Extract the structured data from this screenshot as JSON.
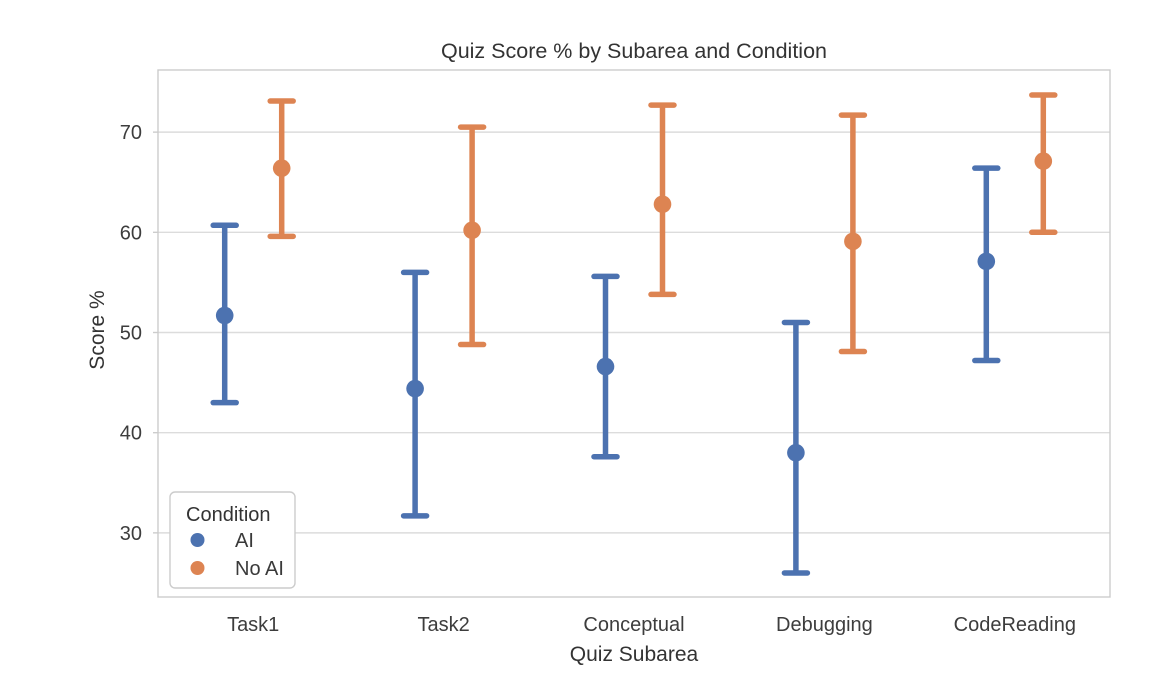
{
  "chart_data": {
    "type": "scatter",
    "variant": "point-plot-with-error-bars",
    "title": "Quiz Score % by Subarea and Condition",
    "xlabel": "Quiz Subarea",
    "ylabel": "Score %",
    "categories": [
      "Task1",
      "Task2",
      "Conceptual",
      "Debugging",
      "CodeReading"
    ],
    "series": [
      {
        "name": "AI",
        "color": "#4C72B0",
        "means": [
          51.7,
          44.4,
          46.6,
          38.0,
          57.1
        ],
        "ci_low": [
          43.0,
          31.7,
          37.6,
          26.0,
          47.2
        ],
        "ci_high": [
          60.7,
          56.0,
          55.6,
          51.0,
          66.4
        ]
      },
      {
        "name": "No AI",
        "color": "#DD8452",
        "means": [
          66.4,
          60.2,
          62.8,
          59.1,
          67.1
        ],
        "ci_low": [
          59.6,
          48.8,
          53.8,
          48.1,
          60.0
        ],
        "ci_high": [
          73.1,
          70.5,
          72.7,
          71.7,
          73.7
        ]
      }
    ],
    "yticks": [
      30,
      40,
      50,
      60,
      70
    ],
    "ylim": [
      23.6,
      76.2
    ],
    "grid": "horizontal-only",
    "legend": {
      "title": "Condition",
      "position": "lower-left"
    },
    "colors": {
      "grid": "#dcdcdc",
      "spine": "#cccccc",
      "tick_text": "#3d3d3d",
      "title_text": "#333333",
      "background": "#ffffff"
    }
  }
}
